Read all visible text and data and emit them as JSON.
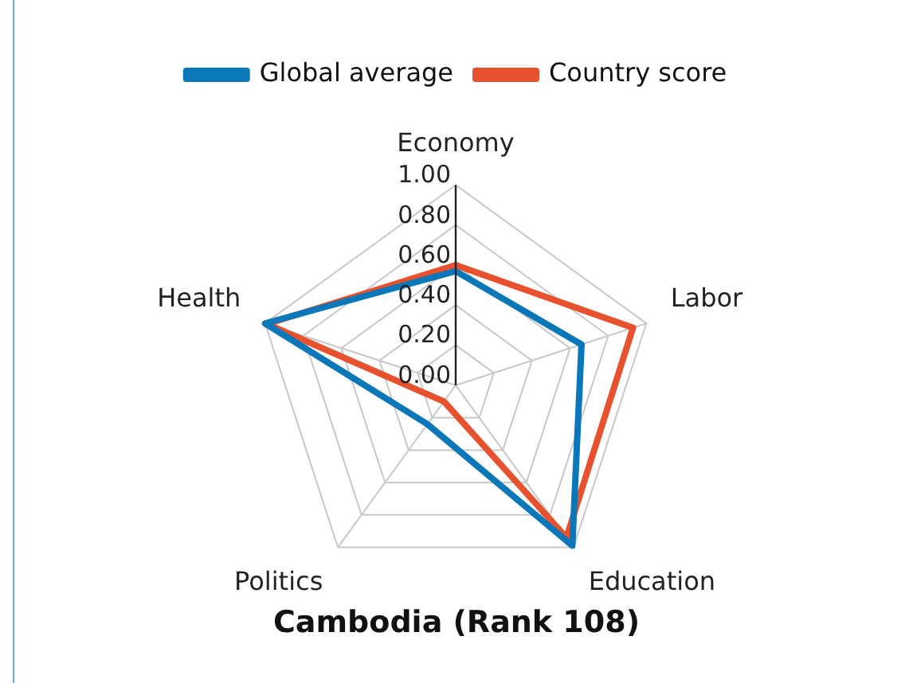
{
  "chart_data": {
    "type": "radar",
    "title": "Cambodia (Rank 108)",
    "categories": [
      "Economy",
      "Labor",
      "Education",
      "Politics",
      "Health"
    ],
    "series": [
      {
        "name": "Global average",
        "color": "#0a77b8",
        "values": [
          0.57,
          0.66,
          0.99,
          0.24,
          1.0
        ]
      },
      {
        "name": "Country score",
        "color": "#e8512d",
        "values": [
          0.6,
          0.93,
          0.94,
          0.1,
          0.99
        ]
      }
    ],
    "ylim": [
      0,
      1
    ],
    "yticks": [
      {
        "value": 0,
        "label": "0.00"
      },
      {
        "value": 0.2,
        "label": "0.20"
      },
      {
        "value": 0.4,
        "label": "0.40"
      },
      {
        "value": 0.6,
        "label": "0.60"
      },
      {
        "value": 0.8,
        "label": "0.80"
      },
      {
        "value": 1,
        "label": "1.00"
      }
    ],
    "grid": true,
    "legend": "top",
    "marker": "none"
  }
}
